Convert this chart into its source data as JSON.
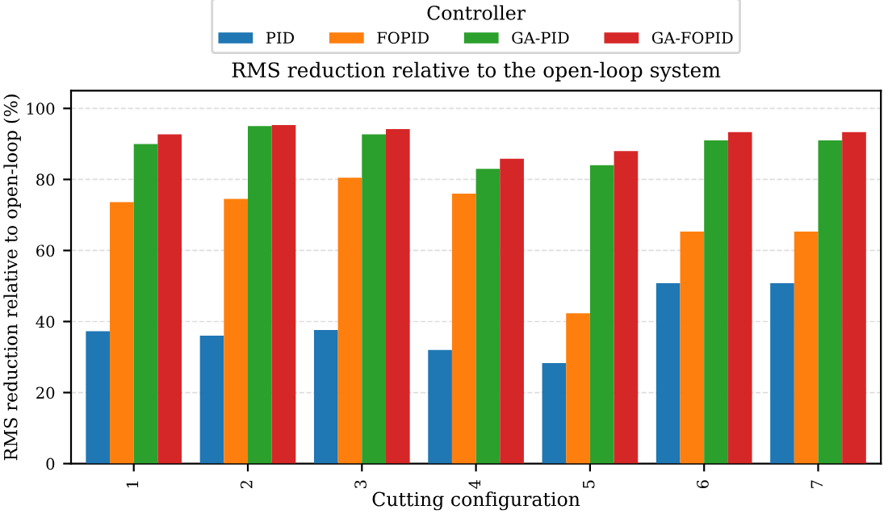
{
  "chart_data": {
    "type": "bar",
    "title": "RMS reduction relative to the open-loop system",
    "xlabel": "Cutting configuration",
    "ylabel": "RMS reduction relative to open-loop (%)",
    "legend_title": "Controller",
    "legend": "top",
    "categories": [
      "1",
      "2",
      "3",
      "4",
      "5",
      "6",
      "7"
    ],
    "series": [
      {
        "name": "PID",
        "color": "#1f77b4",
        "values": [
          37.3,
          36,
          37.6,
          32,
          28.3,
          50.8,
          50.8
        ]
      },
      {
        "name": "FOPID",
        "color": "#ff7f0e",
        "values": [
          73.6,
          74.5,
          80.5,
          76,
          42.3,
          65.3,
          65.3
        ]
      },
      {
        "name": "GA-PID",
        "color": "#2ca02c",
        "values": [
          90,
          95,
          92.7,
          83,
          84,
          91,
          91
        ]
      },
      {
        "name": "GA-FOPID",
        "color": "#d62728",
        "values": [
          92.7,
          95.3,
          94.2,
          85.8,
          88,
          93.3,
          93.3
        ]
      }
    ],
    "ylim": [
      0,
      105
    ],
    "yticks": [
      0,
      20,
      40,
      60,
      80,
      100
    ],
    "grid": "y"
  }
}
